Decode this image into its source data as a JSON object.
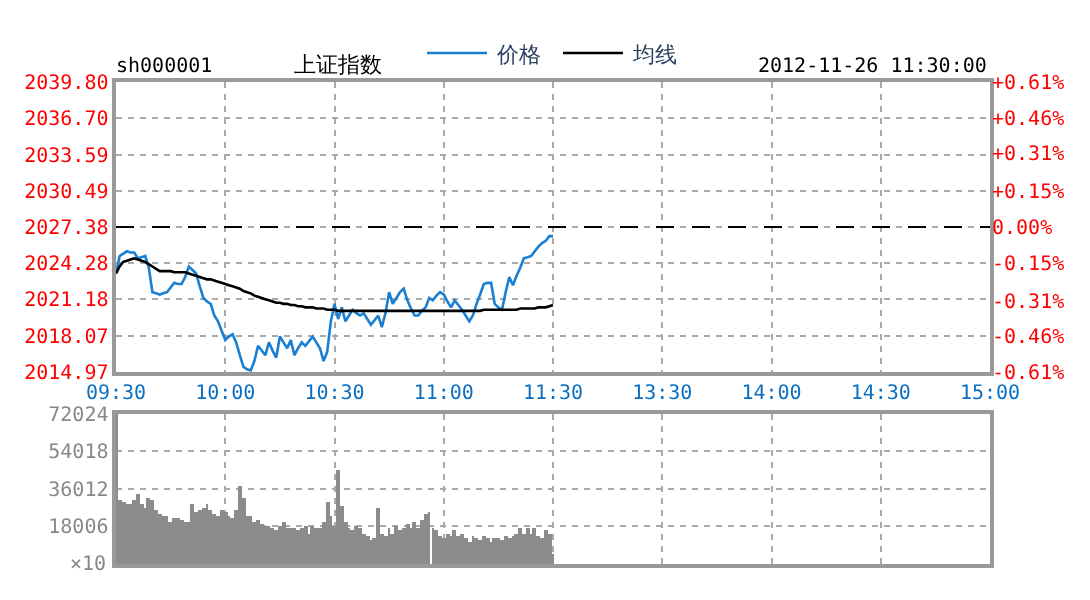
{
  "chart_data": [
    {
      "type": "line",
      "title": "上证指数",
      "annotations": [
        "sh000001",
        "2012-11-26 11:30:00"
      ],
      "legend": "top",
      "grid": true,
      "marker": "none",
      "categories": [
        "09:30",
        null,
        null,
        null,
        null,
        null,
        null,
        null,
        null,
        null,
        null,
        null,
        null,
        null,
        null,
        null,
        null,
        null,
        null,
        null,
        null,
        null,
        null,
        null,
        null,
        null,
        null,
        null,
        null,
        null,
        "10:00",
        null,
        null,
        null,
        null,
        null,
        null,
        null,
        null,
        null,
        null,
        null,
        null,
        null,
        null,
        null,
        null,
        null,
        null,
        null,
        null,
        null,
        null,
        null,
        null,
        null,
        null,
        null,
        null,
        null,
        "10:30",
        null,
        null,
        null,
        null,
        null,
        null,
        null,
        null,
        null,
        null,
        null,
        null,
        null,
        null,
        null,
        null,
        null,
        null,
        null,
        null,
        null,
        null,
        null,
        null,
        null,
        null,
        null,
        null,
        null,
        "11:00",
        null,
        null,
        null,
        null,
        null,
        null,
        null,
        null,
        null,
        null,
        null,
        null,
        null,
        null,
        null,
        null,
        null,
        null,
        null,
        null,
        null,
        null,
        null,
        null,
        null,
        null,
        null,
        null,
        null,
        "11:30",
        null,
        null,
        null,
        null,
        null,
        null,
        null,
        null,
        null,
        null,
        null,
        null,
        null,
        null,
        null,
        null,
        null,
        null,
        null,
        null,
        null,
        null,
        null,
        null,
        null,
        null,
        null,
        null,
        null,
        "13:30",
        null,
        null,
        null,
        null,
        null,
        null,
        null,
        null,
        null,
        null,
        null,
        null,
        null,
        null,
        null,
        null,
        null,
        null,
        null,
        null,
        null,
        null,
        null,
        null,
        null,
        null,
        null,
        null,
        null,
        "14:00",
        null,
        null,
        null,
        null,
        null,
        null,
        null,
        null,
        null,
        null,
        null,
        null,
        null,
        null,
        null,
        null,
        null,
        null,
        null,
        null,
        null,
        null,
        null,
        null,
        null,
        null,
        null,
        null,
        null,
        "14:30",
        null,
        null,
        null,
        null,
        null,
        null,
        null,
        null,
        null,
        null,
        null,
        null,
        null,
        null,
        null,
        null,
        null,
        null,
        null,
        null,
        null,
        null,
        null,
        null,
        null,
        null,
        null,
        null,
        null,
        "15:00"
      ],
      "ylim": [
        2014.97,
        2039.8
      ],
      "yticks": [
        2014.97,
        2018.07,
        2021.18,
        2024.28,
        2027.38,
        2030.49,
        2033.59,
        {
          "value": 2036.7,
          "label": "2036.70"
        },
        {
          "value": 2039.8,
          "label": "2039.80"
        }
      ],
      "y2lim": [
        -0.61,
        0.61
      ],
      "y2ticks": [
        {
          "value": -0.61,
          "label": "-0.61%"
        },
        {
          "value": -0.46,
          "label": "-0.46%"
        },
        {
          "value": -0.31,
          "label": "-0.31%"
        },
        {
          "value": -0.15,
          "label": "-0.15%"
        },
        {
          "value": 0,
          "label": "0.00%"
        },
        {
          "value": 0.15,
          "label": "+0.15%"
        },
        {
          "value": 0.31,
          "label": "+0.31%"
        },
        {
          "value": 0.46,
          "label": "+0.46%"
        },
        {
          "value": 0.61,
          "label": "+0.61%"
        }
      ],
      "ref_lines": [
        {
          "axis": "y",
          "value": 2027.38,
          "color": "#000000",
          "line_style": "dashed"
        }
      ],
      "series": [
        {
          "name": "价格",
          "color": "#1a7fd0",
          "values": [
            2023.4,
            2024.9,
            2025.1,
            2025.3,
            2025.2,
            2025.2,
            2024.7,
            2024.8,
            2024.9,
            2023.9,
            2021.8,
            2021.7,
            2021.6,
            2021.7,
            2021.8,
            2022.2,
            2022.6,
            2022.5,
            2022.5,
            2023.1,
            2024.0,
            2023.7,
            2023.4,
            2022.3,
            2021.3,
            2021.0,
            2020.8,
            2019.8,
            2019.3,
            2018.5,
            2017.7,
            2018.0,
            2018.2,
            2017.5,
            2016.4,
            2015.4,
            2015.2,
            2015.1,
            2015.9,
            2017.2,
            2016.8,
            2016.4,
            2017.5,
            2016.8,
            2016.2,
            2018.0,
            2017.5,
            2017.0,
            2017.7,
            2016.4,
            2017.0,
            2017.5,
            2017.2,
            2017.6,
            2018.0,
            2017.5,
            2017.0,
            2015.9,
            2016.7,
            2019.3,
            2020.8,
            2019.5,
            2020.5,
            2019.3,
            2019.8,
            2020.3,
            2020.0,
            2019.8,
            2020.0,
            2019.5,
            2019.0,
            2019.4,
            2019.8,
            2018.8,
            2020.0,
            2021.8,
            2020.8,
            2021.3,
            2021.8,
            2022.1,
            2021.1,
            2020.4,
            2019.8,
            2019.8,
            2020.2,
            2020.5,
            2021.3,
            2021.1,
            2021.5,
            2021.8,
            2021.6,
            2021.0,
            2020.5,
            2021.1,
            2020.7,
            2020.3,
            2019.8,
            2019.3,
            2019.8,
            2020.8,
            2021.6,
            2022.5,
            2022.6,
            2022.6,
            2020.8,
            2020.5,
            2020.3,
            2021.8,
            2023.1,
            2022.4,
            2023.2,
            2023.9,
            2024.7,
            2024.8,
            2024.9,
            2025.3,
            2025.7,
            2026.0,
            2026.2,
            2026.6,
            2026.6,
            null,
            null,
            null,
            null,
            null,
            null,
            null,
            null,
            null,
            null,
            null,
            null,
            null,
            null,
            null,
            null,
            null,
            null,
            null,
            null,
            null,
            null,
            null,
            null,
            null,
            null,
            null,
            null,
            null,
            null,
            null,
            null,
            null,
            null,
            null,
            null,
            null,
            null,
            null,
            null,
            null,
            null,
            null,
            null,
            null,
            null,
            null,
            null,
            null,
            null,
            null,
            null,
            null,
            null,
            null,
            null,
            null,
            null,
            null,
            null,
            null,
            null,
            null,
            null,
            null,
            null,
            null,
            null,
            null,
            null,
            null,
            null,
            null,
            null,
            null,
            null,
            null,
            null,
            null,
            null,
            null,
            null,
            null,
            null,
            null,
            null,
            null,
            null,
            null,
            null,
            null,
            null,
            null,
            null,
            null,
            null,
            null,
            null,
            null,
            null,
            null,
            null,
            null,
            null,
            null,
            null,
            null,
            null,
            null,
            null,
            null,
            null,
            null,
            null,
            null,
            null,
            null,
            null,
            null,
            null
          ]
        },
        {
          "name": "均线",
          "color": "#000000",
          "values": [
            2023.4,
            2024.0,
            2024.4,
            2024.5,
            2024.6,
            2024.7,
            2024.6,
            2024.5,
            2024.4,
            2024.2,
            2024.0,
            2023.8,
            2023.6,
            2023.6,
            2023.6,
            2023.6,
            2023.5,
            2023.5,
            2023.5,
            2023.5,
            2023.4,
            2023.3,
            2023.2,
            2023.1,
            2023.0,
            2022.9,
            2022.9,
            2022.8,
            2022.7,
            2022.6,
            2022.5,
            2022.4,
            2022.3,
            2022.2,
            2022.1,
            2021.9,
            2021.8,
            2021.7,
            2021.5,
            2021.4,
            2021.3,
            2021.2,
            2021.1,
            2021.0,
            2020.9,
            2020.9,
            2020.8,
            2020.8,
            2020.7,
            2020.7,
            2020.6,
            2020.6,
            2020.5,
            2020.5,
            2020.5,
            2020.4,
            2020.4,
            2020.4,
            2020.3,
            2020.3,
            2020.3,
            2020.2,
            2020.2,
            2020.2,
            2020.2,
            2020.2,
            2020.2,
            2020.2,
            2020.2,
            2020.2,
            2020.2,
            2020.2,
            2020.2,
            2020.2,
            2020.2,
            2020.2,
            2020.2,
            2020.2,
            2020.2,
            2020.2,
            2020.2,
            2020.2,
            2020.2,
            2020.2,
            2020.2,
            2020.2,
            2020.2,
            2020.2,
            2020.2,
            2020.2,
            2020.2,
            2020.2,
            2020.2,
            2020.2,
            2020.2,
            2020.2,
            2020.2,
            2020.2,
            2020.2,
            2020.2,
            2020.2,
            2020.3,
            2020.3,
            2020.3,
            2020.3,
            2020.3,
            2020.3,
            2020.3,
            2020.3,
            2020.3,
            2020.3,
            2020.4,
            2020.4,
            2020.4,
            2020.4,
            2020.4,
            2020.5,
            2020.5,
            2020.5,
            2020.6,
            2020.7,
            null,
            null,
            null,
            null,
            null,
            null,
            null,
            null,
            null,
            null,
            null,
            null,
            null,
            null,
            null,
            null,
            null,
            null,
            null,
            null,
            null,
            null,
            null,
            null,
            null,
            null,
            null,
            null,
            null,
            null,
            null,
            null,
            null,
            null,
            null,
            null,
            null,
            null,
            null,
            null,
            null,
            null,
            null,
            null,
            null,
            null,
            null,
            null,
            null,
            null,
            null,
            null,
            null,
            null,
            null,
            null,
            null,
            null,
            null,
            null,
            null,
            null,
            null,
            null,
            null,
            null,
            null,
            null,
            null,
            null,
            null,
            null,
            null,
            null,
            null,
            null,
            null,
            null,
            null,
            null,
            null,
            null,
            null,
            null,
            null,
            null,
            null,
            null,
            null,
            null,
            null,
            null,
            null,
            null,
            null,
            null,
            null,
            null,
            null,
            null,
            null,
            null,
            null,
            null,
            null,
            null,
            null,
            null,
            null,
            null,
            null,
            null,
            null,
            null,
            null,
            null,
            null,
            null,
            null,
            null
          ]
        }
      ]
    },
    {
      "type": "bar",
      "grid": true,
      "tick_labels": "y",
      "ylabel": "×10",
      "categories": [
        null,
        null,
        null,
        null,
        null,
        null,
        null,
        null,
        null,
        null,
        null,
        null,
        null,
        null,
        null,
        null,
        null,
        null,
        null,
        null,
        null,
        null,
        null,
        null,
        null,
        null,
        null,
        null,
        null,
        null,
        null,
        null,
        null,
        null,
        null,
        null,
        null,
        null,
        null,
        null,
        null,
        null,
        null,
        null,
        null,
        null,
        null,
        null,
        null,
        null,
        null,
        null,
        null,
        null,
        null,
        null,
        null,
        null,
        null,
        null,
        null,
        null,
        null,
        null,
        null,
        null,
        null,
        null,
        null,
        null,
        null,
        null,
        null,
        null,
        null,
        null,
        null,
        null,
        null,
        null,
        null,
        null,
        null,
        null,
        null,
        null,
        null,
        null,
        null,
        null,
        null,
        null,
        null,
        null,
        null,
        null,
        null,
        null,
        null,
        null,
        null,
        null,
        null,
        null,
        null,
        null,
        null,
        null,
        null,
        null,
        null,
        null,
        null,
        null,
        null,
        null,
        null,
        null,
        null,
        null,
        null,
        null,
        null,
        null,
        null,
        null,
        null,
        null,
        null,
        null,
        null,
        null,
        null,
        null,
        null,
        null,
        null,
        null,
        null,
        null,
        null,
        null,
        null,
        null,
        null,
        null,
        null,
        null,
        null,
        null,
        null,
        null,
        null,
        null,
        null,
        null,
        null,
        null,
        null,
        null,
        null,
        null,
        null,
        null,
        null,
        null,
        null,
        null,
        null,
        null,
        null,
        null,
        null,
        null,
        null,
        null,
        null,
        null,
        null,
        null,
        null,
        null,
        null,
        null,
        null,
        null,
        null,
        null,
        null,
        null,
        null,
        null,
        null,
        null,
        null,
        null,
        null,
        null,
        null,
        null,
        null,
        null,
        null,
        null,
        null,
        null,
        null,
        null,
        null,
        null,
        null,
        null,
        null,
        null,
        null,
        null,
        null,
        null,
        null,
        null,
        null,
        null,
        null,
        null,
        null,
        null,
        null,
        null,
        null,
        null,
        null,
        null,
        null,
        null,
        null,
        null,
        null,
        null,
        null,
        null,
        null
      ],
      "ylim": [
        0,
        72024
      ],
      "yticks": [
        18006,
        36012,
        54018,
        72024
      ],
      "series": [
        {
          "color": "#8c8c8c",
          "values": [
            72000,
            31000,
            30000,
            29000,
            29000,
            31000,
            34000,
            29000,
            27000,
            32000,
            31000,
            26000,
            24000,
            23000,
            23000,
            20000,
            22000,
            22000,
            21000,
            20000,
            20000,
            29000,
            25000,
            26000,
            27000,
            29000,
            26000,
            24000,
            23000,
            26000,
            25000,
            23000,
            22000,
            26000,
            38000,
            32000,
            23000,
            23000,
            20000,
            21000,
            19000,
            18000,
            18000,
            17000,
            16000,
            18000,
            20000,
            17000,
            17000,
            17000,
            16000,
            17000,
            18000,
            15000,
            18000,
            17000,
            17000,
            20000,
            30000,
            23000,
            18000,
            45000,
            28000,
            20000,
            17000,
            16000,
            18000,
            17000,
            15000,
            14000,
            12000,
            13000,
            27000,
            15000,
            14000,
            17000,
            15000,
            18000,
            16000,
            17000,
            19000,
            17000,
            20000,
            17000,
            21000,
            24000,
            25000,
            17000,
            16000,
            14000,
            13000,
            15000,
            14000,
            16000,
            14000,
            15000,
            13000,
            11000,
            14000,
            13000,
            12000,
            14000,
            13000,
            11000,
            13000,
            13000,
            12000,
            14000,
            13000,
            14000,
            15000,
            17000,
            15000,
            17000,
            15000,
            17000,
            14000,
            13000,
            16000,
            15000,
            5000,
            null,
            null,
            null,
            null,
            null,
            null,
            null,
            null,
            null,
            null,
            null,
            null,
            null,
            null,
            null,
            null,
            null,
            null,
            null,
            null,
            null,
            null,
            null,
            null,
            null,
            null,
            null,
            null,
            null,
            null,
            null,
            null,
            null,
            null,
            null,
            null,
            null,
            null,
            null,
            null,
            null,
            null,
            null,
            null,
            null,
            null,
            null,
            null,
            null,
            null,
            null,
            null,
            null,
            null,
            null,
            null,
            null,
            null,
            null,
            null,
            null,
            null,
            null,
            null,
            null,
            null,
            null,
            null,
            null,
            null,
            null,
            null,
            null,
            null,
            null,
            null,
            null,
            null,
            null,
            null,
            null,
            null,
            null,
            null,
            null,
            null,
            null,
            null,
            null,
            null,
            null,
            null,
            null,
            null,
            null,
            null,
            null,
            null,
            null,
            null,
            null,
            null,
            null,
            null,
            null,
            null,
            null,
            null,
            null,
            null,
            null,
            null,
            null,
            null,
            null,
            null,
            null,
            null,
            null,
            null
          ]
        }
      ]
    }
  ]
}
